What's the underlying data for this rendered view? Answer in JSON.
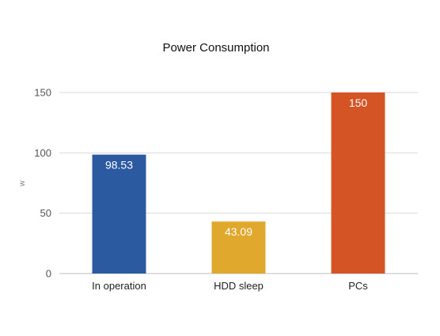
{
  "chart_data": {
    "type": "bar",
    "title": "Power Consumption",
    "xlabel": "",
    "ylabel": "w",
    "ylim": [
      0,
      150
    ],
    "yticks": [
      0,
      50,
      100,
      150
    ],
    "grid": true,
    "legend": "none",
    "categories": [
      "In operation",
      "HDD sleep",
      "PCs"
    ],
    "values": [
      98.53,
      43.09,
      150
    ],
    "data_labels": [
      "98.53",
      "43.09",
      "150"
    ],
    "colors": [
      "#2c5aa0",
      "#e0a82c",
      "#d55426"
    ]
  }
}
